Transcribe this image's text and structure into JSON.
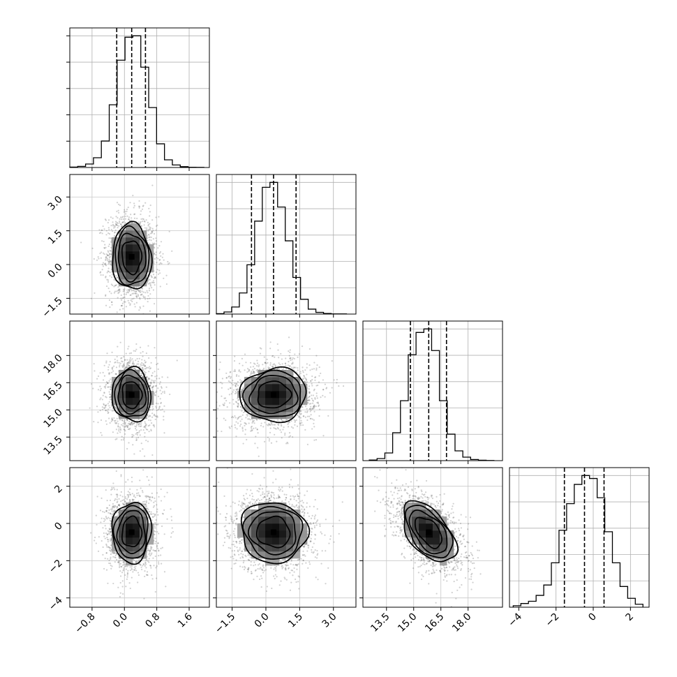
{
  "chart_data": {
    "type": "corner",
    "title": "",
    "grid": true,
    "parameters": [
      {
        "range": [
          -1.35,
          2.1
        ],
        "ticks": [
          -0.8,
          0.0,
          0.8,
          1.6
        ],
        "tick_labels": [
          "−0.8",
          "0.0",
          "0.8",
          "1.6"
        ],
        "quantiles": [
          -0.19,
          0.18,
          0.52
        ],
        "histogram": {
          "bin_edges": [
            -1.35,
            -1.155,
            -0.96,
            -0.765,
            -0.57,
            -0.375,
            -0.18,
            0.015,
            0.21,
            0.405,
            0.6,
            0.795,
            0.99,
            1.185,
            1.38,
            1.575,
            1.77,
            1.965
          ],
          "counts": [
            3,
            8,
            25,
            70,
            190,
            450,
            770,
            935,
            945,
            720,
            430,
            170,
            55,
            18,
            6,
            2,
            1
          ]
        }
      },
      {
        "range": [
          -2.2,
          4.0
        ],
        "ticks": [
          -1.5,
          0.0,
          1.5,
          3.0
        ],
        "tick_labels": [
          "−1.5",
          "0.0",
          "1.5",
          "3.0"
        ],
        "quantiles": [
          -0.64,
          0.34,
          1.34
        ],
        "histogram": {
          "bin_edges": [
            -2.2,
            -1.86,
            -1.52,
            -1.18,
            -0.84,
            -0.5,
            -0.16,
            0.18,
            0.52,
            0.86,
            1.2,
            1.54,
            1.88,
            2.22,
            2.56,
            2.9,
            3.24,
            3.58
          ],
          "counts": [
            3,
            15,
            50,
            150,
            350,
            660,
            900,
            935,
            760,
            520,
            260,
            105,
            35,
            12,
            4,
            1,
            1
          ]
        }
      },
      {
        "range": [
          12.2,
          19.9
        ],
        "ticks": [
          13.5,
          15.0,
          16.5,
          18.0
        ],
        "tick_labels": [
          "13.5",
          "15.0",
          "16.5",
          "18.0"
        ],
        "quantiles": [
          14.82,
          15.83,
          16.81
        ],
        "histogram": {
          "bin_edges": [
            12.55,
            12.98,
            13.41,
            13.84,
            14.27,
            14.7,
            15.13,
            15.56,
            15.99,
            16.42,
            16.85,
            17.28,
            17.71,
            18.14,
            18.57,
            19.0,
            19.43
          ],
          "counts": [
            4,
            15,
            55,
            200,
            430,
            760,
            920,
            945,
            790,
            430,
            190,
            70,
            25,
            8,
            3,
            1
          ]
        }
      },
      {
        "range": [
          -4.5,
          3.0
        ],
        "ticks": [
          -4,
          -2,
          0,
          2
        ],
        "tick_labels": [
          "−4",
          "−2",
          "0",
          "2"
        ],
        "quantiles": [
          -1.55,
          -0.47,
          0.58
        ],
        "histogram": {
          "bin_edges": [
            -4.3,
            -3.89,
            -3.48,
            -3.07,
            -2.66,
            -2.25,
            -1.84,
            -1.43,
            -1.02,
            -0.61,
            -0.2,
            0.21,
            0.62,
            1.03,
            1.44,
            1.85,
            2.26,
            2.67
          ],
          "counts": [
            10,
            25,
            40,
            80,
            150,
            300,
            520,
            700,
            830,
            890,
            870,
            740,
            510,
            300,
            140,
            60,
            20
          ]
        }
      }
    ],
    "joint": [
      {
        "x": 0,
        "y": 1,
        "center": [
          0.18,
          0.34
        ],
        "sigma": [
          0.31,
          0.95
        ],
        "rho": -0.05
      },
      {
        "x": 0,
        "y": 2,
        "center": [
          0.18,
          15.83
        ],
        "sigma": [
          0.31,
          0.95
        ],
        "rho": -0.05
      },
      {
        "x": 1,
        "y": 2,
        "center": [
          0.34,
          15.83
        ],
        "sigma": [
          0.95,
          0.95
        ],
        "rho": 0.05
      },
      {
        "x": 0,
        "y": 3,
        "center": [
          0.18,
          -0.47
        ],
        "sigma": [
          0.31,
          1.05
        ],
        "rho": 0.03
      },
      {
        "x": 1,
        "y": 3,
        "center": [
          0.34,
          -0.47
        ],
        "sigma": [
          0.95,
          1.05
        ],
        "rho": -0.05
      },
      {
        "x": 2,
        "y": 3,
        "center": [
          15.83,
          -0.47
        ],
        "sigma": [
          0.95,
          1.05
        ],
        "rho": -0.52
      }
    ],
    "contour_levels_sigma": [
      0.5,
      1.0,
      1.5,
      2.0
    ]
  }
}
